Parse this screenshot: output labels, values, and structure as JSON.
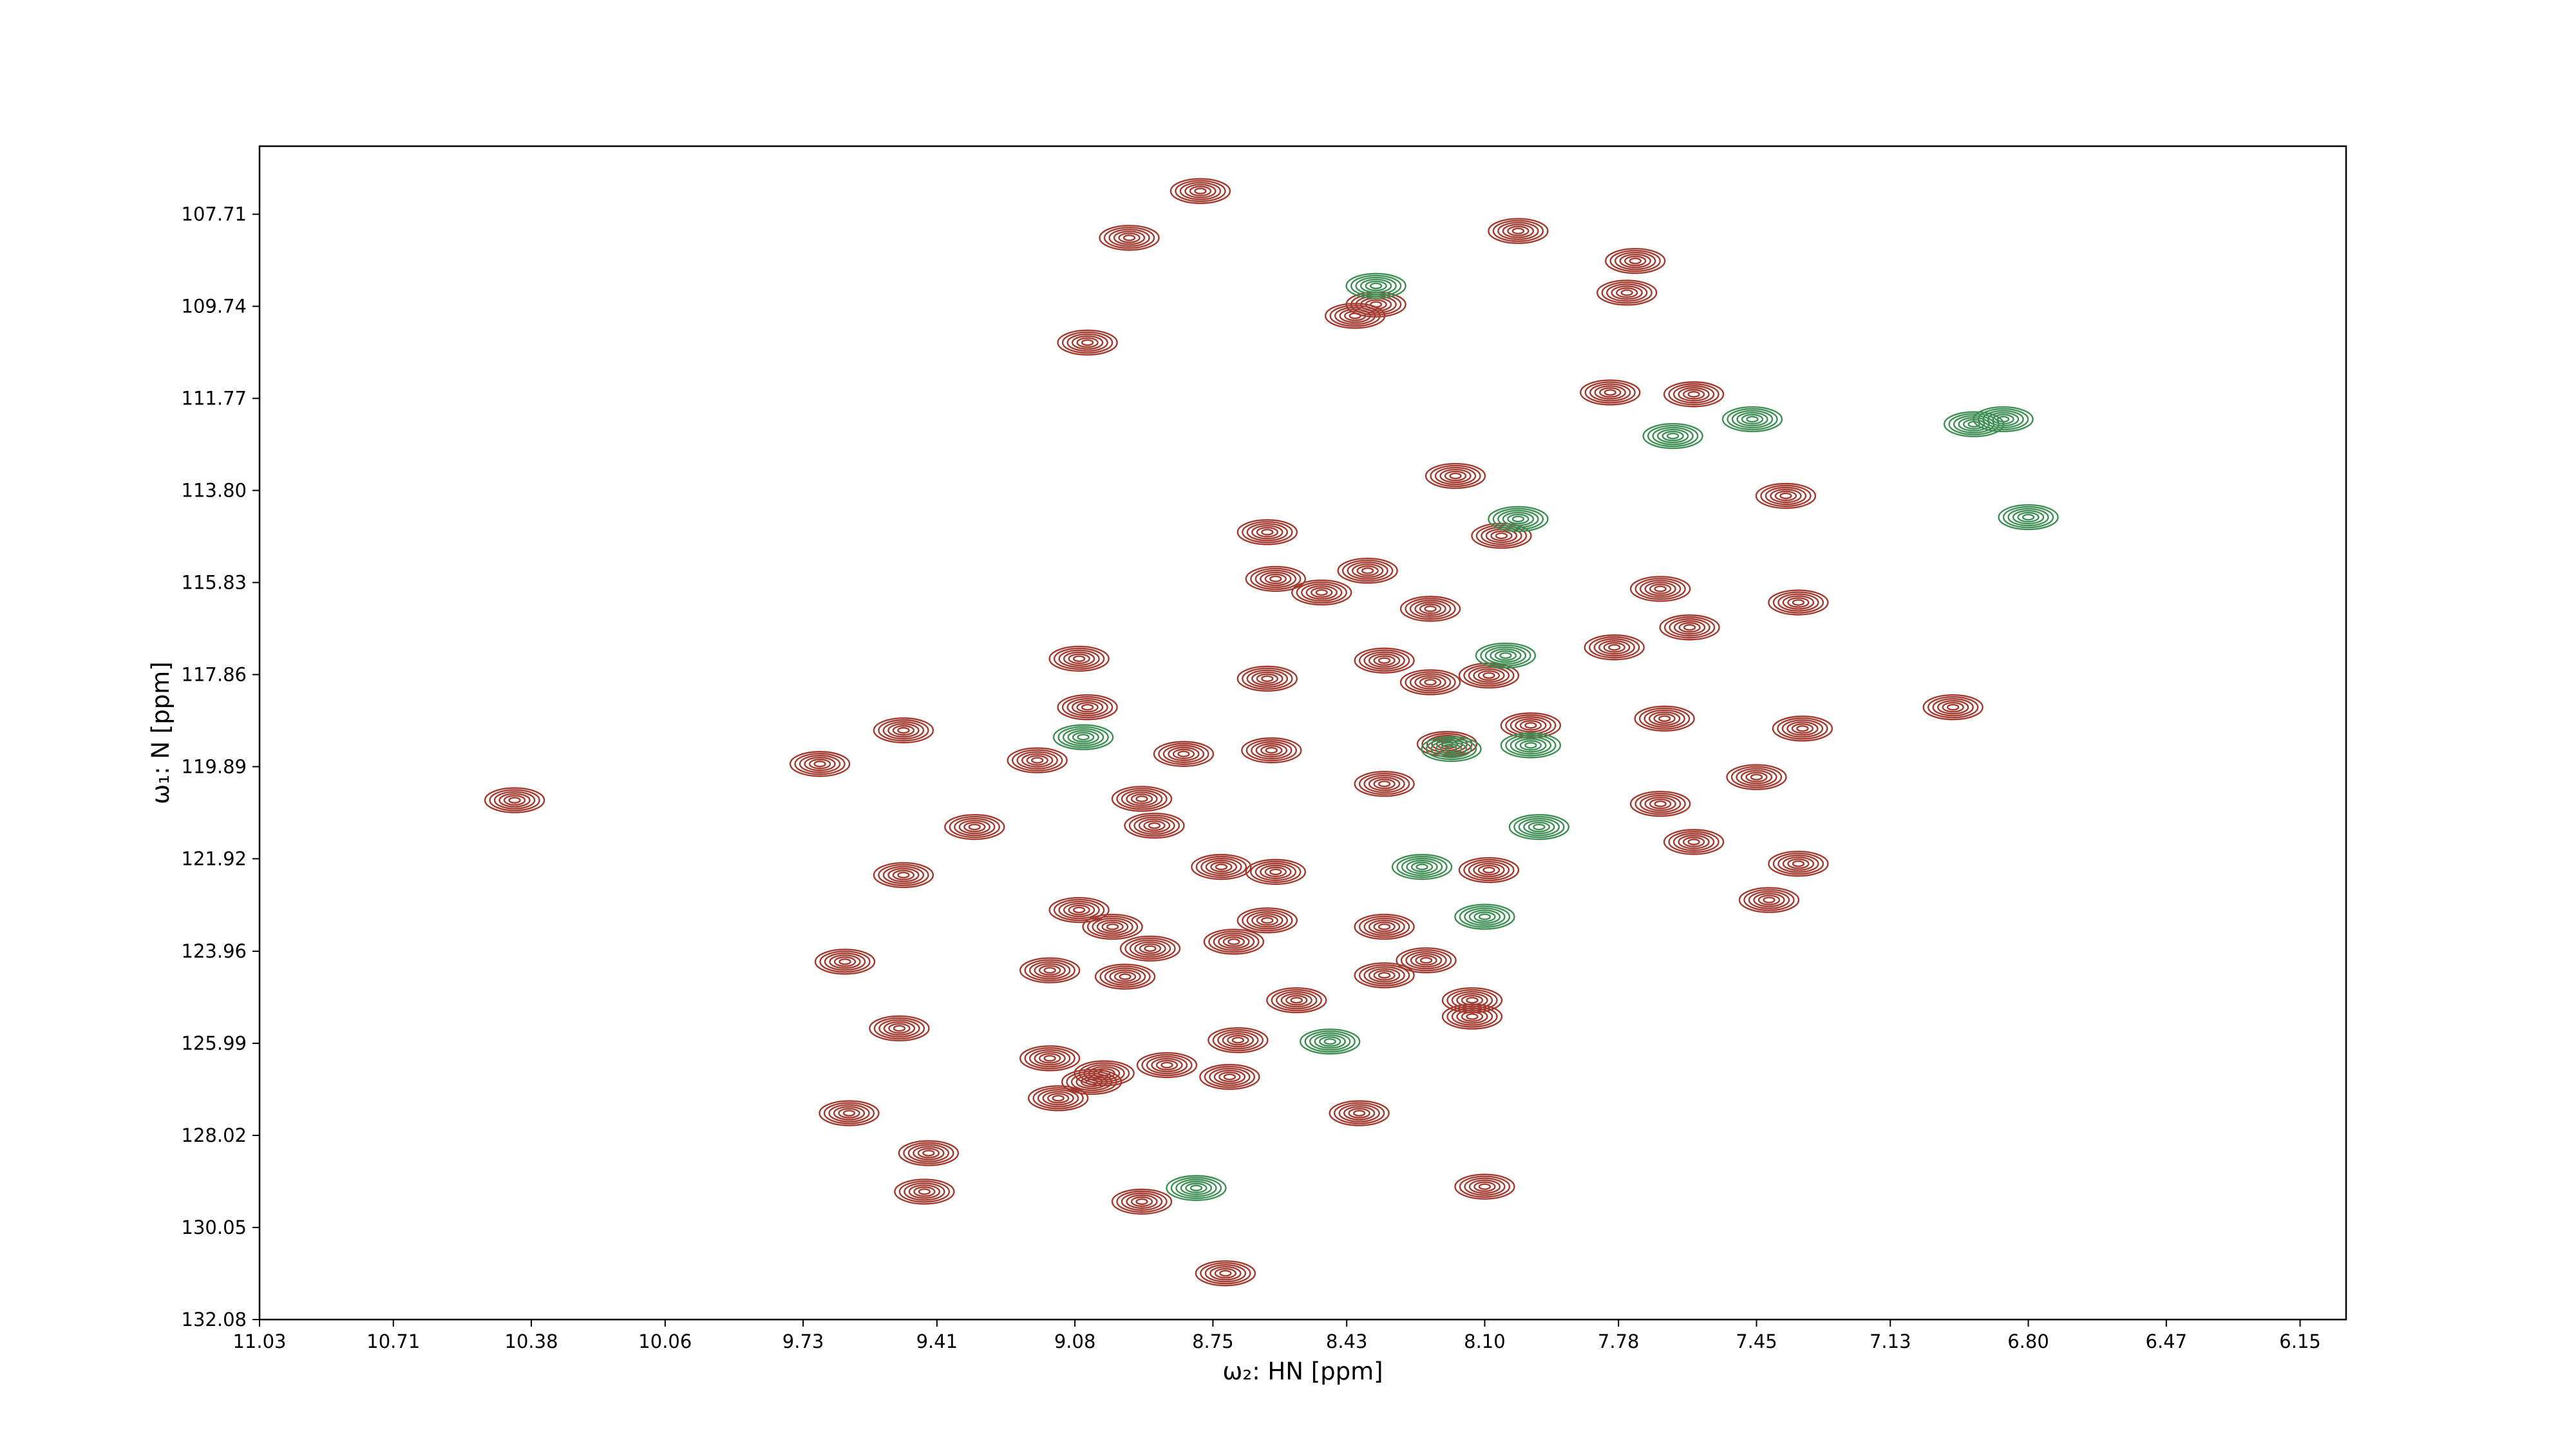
{
  "chart_data": {
    "type": "contour",
    "x_label": "ω₂: HN [ppm]",
    "y_label": "ω₁: N [ppm]",
    "xlim": [
      11.03,
      6.04
    ],
    "ylim": [
      132.08,
      106.21
    ],
    "xticks": [
      11.03,
      10.71,
      10.38,
      10.06,
      9.73,
      9.41,
      9.08,
      8.75,
      8.43,
      {
        "value": 8.1,
        "label": "8.10"
      },
      7.78,
      7.45,
      7.13,
      {
        "value": 6.8,
        "label": "6.80"
      },
      6.47,
      6.15
    ],
    "yticks": [
      107.71,
      109.74,
      111.77,
      {
        "value": 113.8,
        "label": "113.80"
      },
      115.83,
      117.86,
      119.89,
      121.92,
      123.96,
      125.99,
      128.02,
      130.05,
      132.08
    ],
    "series": [
      {
        "color": "#a33a30",
        "x": [
          8.95,
          8.78,
          8.02,
          7.74,
          7.76,
          8.36,
          8.41,
          9.05,
          7.8,
          7.6,
          8.17,
          7.38,
          8.06,
          8.62,
          8.6,
          8.49,
          8.38,
          7.68,
          7.35,
          7.61,
          7.79,
          8.34,
          8.23,
          8.62,
          9.07,
          8.09,
          8.23,
          7.67,
          7.34,
          6.98,
          9.05,
          9.49,
          8.61,
          8.82,
          8.19,
          7.99,
          9.69,
          9.17,
          7.45,
          8.34,
          8.92,
          8.89,
          9.32,
          7.68,
          7.6,
          10.42,
          7.35,
          9.49,
          8.73,
          8.6,
          8.09,
          7.42,
          9.07,
          8.99,
          8.9,
          8.7,
          8.62,
          8.34,
          8.24,
          8.96,
          9.14,
          9.63,
          8.34,
          8.13,
          8.55,
          8.13,
          9.5,
          9.14,
          9.04,
          9.01,
          8.86,
          8.71,
          9.12,
          8.69,
          8.4,
          9.62,
          9.43,
          9.44,
          8.92,
          8.1,
          8.72
        ],
        "y": [
          108.23,
          107.2,
          108.08,
          108.74,
          109.44,
          109.7,
          109.95,
          110.54,
          111.64,
          111.68,
          113.48,
          113.92,
          114.8,
          114.72,
          115.75,
          116.05,
          115.57,
          115.97,
          116.27,
          116.82,
          117.26,
          117.55,
          118.03,
          117.95,
          117.51,
          117.88,
          116.41,
          118.83,
          119.05,
          118.58,
          118.58,
          119.09,
          119.53,
          119.61,
          119.39,
          118.98,
          119.83,
          119.75,
          120.12,
          120.27,
          120.6,
          121.19,
          121.22,
          120.71,
          121.55,
          120.63,
          122.03,
          122.28,
          122.1,
          122.21,
          122.17,
          122.83,
          123.05,
          123.42,
          123.9,
          123.75,
          123.28,
          123.42,
          124.16,
          124.52,
          124.38,
          124.19,
          124.49,
          125.04,
          125.04,
          125.4,
          125.66,
          126.32,
          126.84,
          126.65,
          126.47,
          126.73,
          127.2,
          125.92,
          127.53,
          127.53,
          128.41,
          129.26,
          129.48,
          129.15,
          131.06
        ]
      },
      {
        "color": "#3f8f55",
        "x": [
          9.06,
          8.05,
          8.18,
          7.99,
          7.97,
          8.25,
          8.1,
          8.47,
          8.79,
          7.46,
          7.65,
          6.86,
          6.93,
          6.8,
          8.02,
          8.36
        ],
        "y": [
          119.24,
          117.44,
          119.5,
          119.42,
          121.22,
          122.1,
          123.2,
          125.95,
          129.18,
          112.23,
          112.6,
          112.23,
          112.34,
          114.39,
          114.43,
          109.29
        ]
      }
    ]
  }
}
